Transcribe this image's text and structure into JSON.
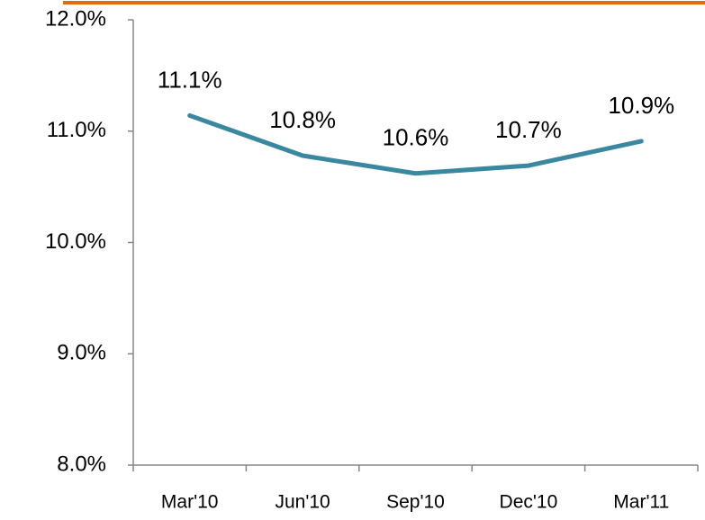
{
  "chart_data": {
    "type": "line",
    "categories": [
      "Mar'10",
      "Jun'10",
      "Sep'10",
      "Dec'10",
      "Mar'11"
    ],
    "series": [
      {
        "color": "#3a87a0",
        "values": [
          11.14,
          10.78,
          10.62,
          10.69,
          10.91
        ],
        "value_labels": [
          "11.1%",
          "10.8%",
          "10.6%",
          "10.7%",
          "10.9%"
        ]
      }
    ],
    "ylim": [
      8,
      12
    ],
    "yticks": [
      {
        "value": 8,
        "label": "8.0%"
      },
      {
        "value": 9,
        "label": "9.0%"
      },
      {
        "value": 10,
        "label": "10.0%"
      },
      {
        "value": 11,
        "label": "11.0%"
      },
      {
        "value": 12,
        "label": "12.0%"
      }
    ],
    "grid": false
  }
}
